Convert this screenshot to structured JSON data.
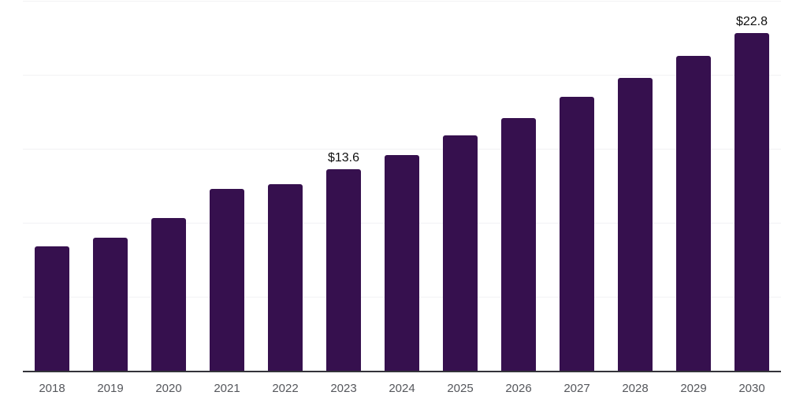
{
  "chart_data": {
    "type": "bar",
    "title": "",
    "xlabel": "",
    "ylabel": "",
    "categories": [
      "2018",
      "2019",
      "2020",
      "2021",
      "2022",
      "2023",
      "2024",
      "2025",
      "2026",
      "2027",
      "2028",
      "2029",
      "2030"
    ],
    "values": [
      8.4,
      9.0,
      10.3,
      12.3,
      12.6,
      13.6,
      14.6,
      15.9,
      17.1,
      18.5,
      19.8,
      21.3,
      22.8
    ],
    "data_labels": {
      "2023": "$13.6",
      "2030": "$22.8"
    },
    "unit_prefix": "$",
    "ylim": [
      0,
      25
    ],
    "gridline_values": [
      5,
      10,
      15,
      20,
      25
    ],
    "grid": "on",
    "legend": "none",
    "colors": {
      "bar": "#36104e",
      "axis_line": "#33333a",
      "gridline": "#f2f2f4",
      "tick_label": "#55575c",
      "data_label": "#101010",
      "background": "#ffffff"
    }
  }
}
